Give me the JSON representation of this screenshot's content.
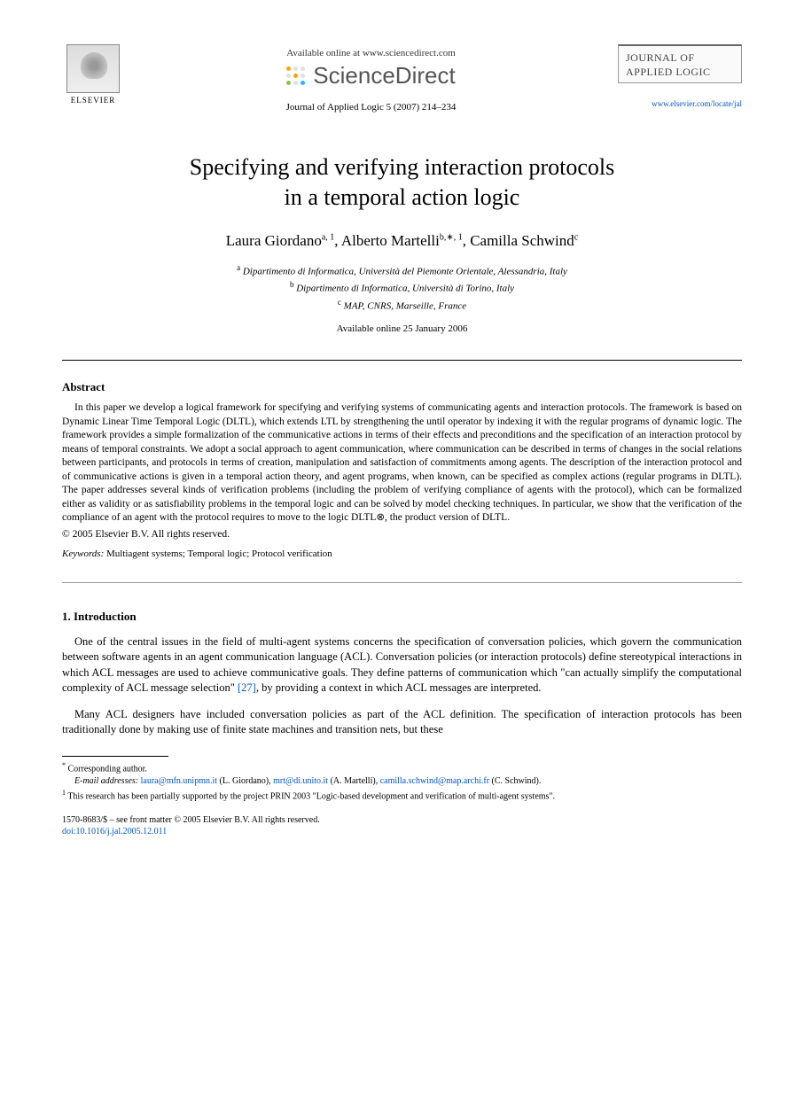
{
  "header": {
    "publisher_name": "ELSEVIER",
    "available_online_text": "Available online at www.sciencedirect.com",
    "sciencedirect_text": "ScienceDirect",
    "citation": "Journal of Applied Logic 5 (2007) 214–234",
    "journal_box_line1": "JOURNAL OF",
    "journal_box_line2": "APPLIED LOGIC",
    "journal_url": "www.elsevier.com/locate/jal",
    "sd_dot_colors": [
      "#f7a600",
      "#e0e0e0",
      "#e0e0e0",
      "#e0e0e0",
      "#f7a600",
      "#e0e0e0",
      "#8bc34a",
      "#e0e0e0",
      "#29b6f6"
    ]
  },
  "title": {
    "line1": "Specifying and verifying interaction protocols",
    "line2": "in a temporal action logic"
  },
  "authors": {
    "a1_name": "Laura Giordano",
    "a1_sup": "a, 1",
    "a2_name": "Alberto Martelli",
    "a2_sup": "b,∗, 1",
    "a3_name": "Camilla Schwind",
    "a3_sup": "c"
  },
  "affiliations": {
    "a": "Dipartimento di Informatica, Università del Piemonte Orientale, Alessandria, Italy",
    "b": "Dipartimento di Informatica, Università di Torino, Italy",
    "c": "MAP, CNRS, Marseille, France",
    "available_date": "Available online 25 January 2006"
  },
  "abstract": {
    "heading": "Abstract",
    "body": "In this paper we develop a logical framework for specifying and verifying systems of communicating agents and interaction protocols. The framework is based on Dynamic Linear Time Temporal Logic (DLTL), which extends LTL by strengthening the until operator by indexing it with the regular programs of dynamic logic. The framework provides a simple formalization of the communicative actions in terms of their effects and preconditions and the specification of an interaction protocol by means of temporal constraints. We adopt a social approach to agent communication, where communication can be described in terms of changes in the social relations between participants, and protocols in terms of creation, manipulation and satisfaction of commitments among agents. The description of the interaction protocol and of communicative actions is given in a temporal action theory, and agent programs, when known, can be specified as complex actions (regular programs in DLTL). The paper addresses several kinds of verification problems (including the problem of verifying compliance of agents with the protocol), which can be formalized either as validity or as satisfiability problems in the temporal logic and can be solved by model checking techniques. In particular, we show that the verification of the compliance of an agent with the protocol requires to move to the logic DLTL⊗, the product version of DLTL.",
    "copyright": "© 2005 Elsevier B.V. All rights reserved.",
    "keywords_label": "Keywords:",
    "keywords_value": " Multiagent systems; Temporal logic; Protocol verification"
  },
  "intro": {
    "heading": "1.  Introduction",
    "p1_part1": "One of the central issues in the field of multi-agent systems concerns the specification of conversation policies, which govern the communication between software agents in an agent communication language (ACL). Conversation policies (or interaction protocols) define stereotypical interactions in which ACL messages are used to achieve communicative goals. They define patterns of communication which \"can actually simplify the computational complexity of ACL message selection\" ",
    "p1_ref": "[27]",
    "p1_part2": ", by providing a context in which ACL messages are interpreted.",
    "p2": "Many ACL designers have included conversation policies as part of the ACL definition. The specification of interaction protocols has been traditionally done by making use of finite state machines and transition nets, but these"
  },
  "footnotes": {
    "corr_label": "Corresponding author.",
    "email_label": "E-mail addresses:",
    "e1": "laura@mfn.unipmn.it",
    "e1_who": " (L. Giordano), ",
    "e2": "mrt@di.unito.it",
    "e2_who": " (A. Martelli), ",
    "e3": "camilla.schwind@map.archi.fr",
    "e3_who": " (C. Schwind).",
    "note1": "This research has been partially supported by the project PRIN 2003 \"Logic-based development and verification of multi-agent systems\"."
  },
  "bottom": {
    "issn_line": "1570-8683/$ – see front matter © 2005 Elsevier B.V. All rights reserved.",
    "doi": "doi:10.1016/j.jal.2005.12.011"
  },
  "styling": {
    "page_bg": "#ffffff",
    "text_color": "#000000",
    "link_color": "#0055cc",
    "title_fontsize": 26,
    "author_fontsize": 17,
    "body_fontsize": 12.5,
    "abstract_fontsize": 11.5,
    "footnote_fontsize": 10
  }
}
